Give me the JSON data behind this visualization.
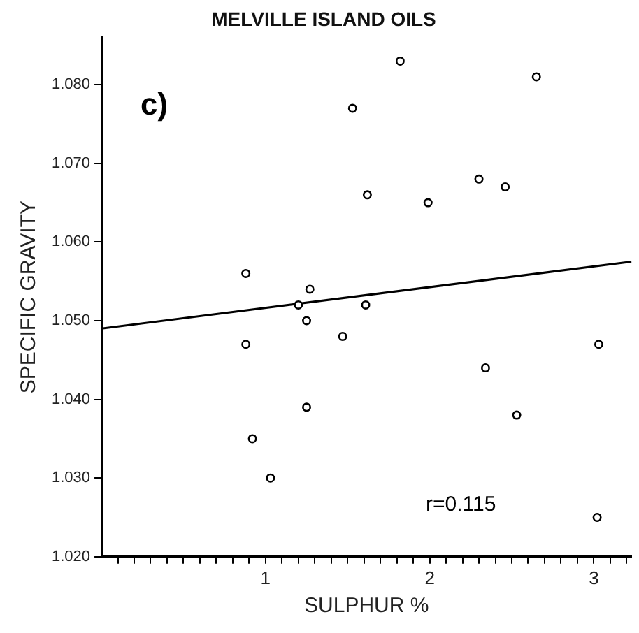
{
  "chart_data": {
    "type": "scatter",
    "title": "MELVILLE ISLAND OILS",
    "xlabel": "SULPHUR %",
    "ylabel": "SPECIFIC GRAVITY",
    "annotations": [
      "c)",
      "r=0.115"
    ],
    "x": [
      0.88,
      0.88,
      0.92,
      1.03,
      1.2,
      1.27,
      1.25,
      1.25,
      1.47,
      1.61,
      1.53,
      1.62,
      1.82,
      1.99,
      2.3,
      2.46,
      2.65,
      2.34,
      2.53,
      3.03,
      3.02
    ],
    "series": [
      {
        "color": "#000000",
        "values": [
          1.056,
          1.047,
          1.035,
          1.03,
          1.052,
          1.054,
          1.05,
          1.039,
          1.048,
          1.052,
          1.077,
          1.066,
          1.083,
          1.065,
          1.068,
          1.067,
          1.081,
          1.044,
          1.038,
          1.047,
          1.025
        ]
      },
      {
        "type": "line",
        "marker": "none",
        "color": "#000000",
        "x": [
          0,
          3.23
        ],
        "values": [
          1.049,
          1.0575
        ]
      }
    ],
    "marker": "circle",
    "grid": false,
    "legend": false,
    "xlim": [
      0,
      3.23
    ],
    "ylim": [
      1.02,
      1.086
    ],
    "xticks": [
      {
        "value": 0.1,
        "label": null
      },
      {
        "value": 0.2,
        "label": null
      },
      {
        "value": 0.3,
        "label": null
      },
      {
        "value": 0.4,
        "label": null
      },
      {
        "value": 0.5,
        "label": null
      },
      {
        "value": 0.6,
        "label": null
      },
      {
        "value": 0.7,
        "label": null
      },
      {
        "value": 0.8,
        "label": null
      },
      {
        "value": 0.9,
        "label": null
      },
      1,
      {
        "value": 1.1,
        "label": null
      },
      {
        "value": 1.2,
        "label": null
      },
      {
        "value": 1.3,
        "label": null
      },
      {
        "value": 1.4,
        "label": null
      },
      {
        "value": 1.5,
        "label": null
      },
      {
        "value": 1.6,
        "label": null
      },
      {
        "value": 1.7,
        "label": null
      },
      {
        "value": 1.8,
        "label": null
      },
      {
        "value": 1.9,
        "label": null
      },
      2,
      {
        "value": 2.1,
        "label": null
      },
      {
        "value": 2.2,
        "label": null
      },
      {
        "value": 2.3,
        "label": null
      },
      {
        "value": 2.4,
        "label": null
      },
      {
        "value": 2.5,
        "label": null
      },
      {
        "value": 2.6,
        "label": null
      },
      {
        "value": 2.7,
        "label": null
      },
      {
        "value": 2.8,
        "label": null
      },
      {
        "value": 2.9,
        "label": null
      },
      3,
      {
        "value": 3.1,
        "label": null
      },
      {
        "value": 3.2,
        "label": null
      }
    ],
    "yticks": [
      {
        "value": 1.02,
        "label": "1.020"
      },
      {
        "value": 1.03,
        "label": "1.030"
      },
      {
        "value": 1.04,
        "label": "1.040"
      },
      {
        "value": 1.05,
        "label": "1.050"
      },
      {
        "value": 1.06,
        "label": "1.060"
      },
      {
        "value": 1.07,
        "label": "1.070"
      },
      {
        "value": 1.08,
        "label": "1.080"
      }
    ]
  }
}
